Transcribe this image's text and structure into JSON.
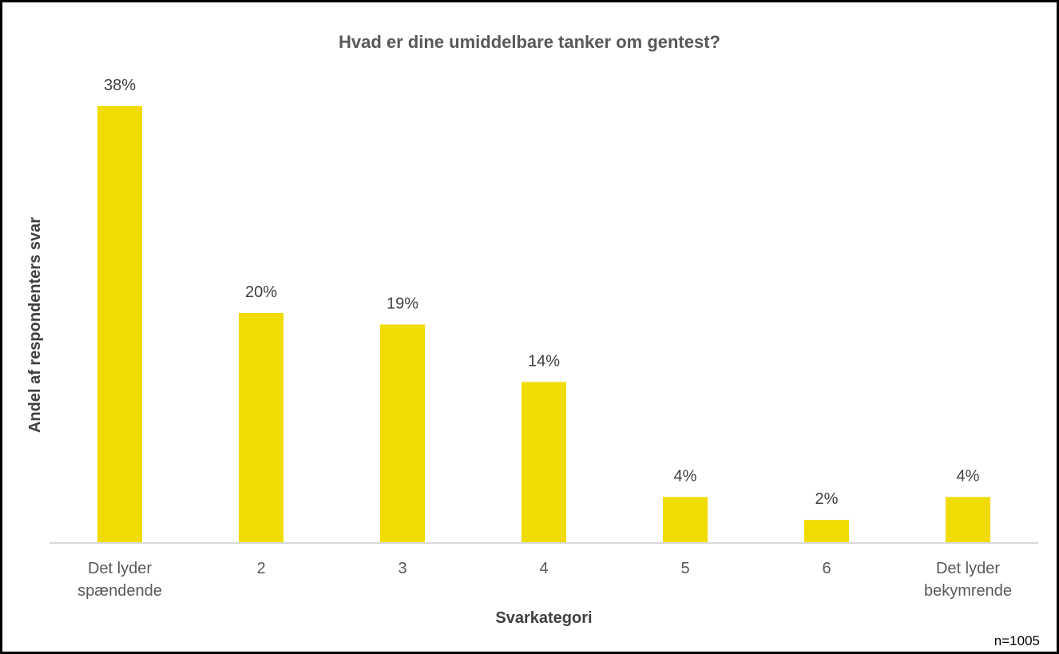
{
  "chart_data": {
    "type": "bar",
    "title": "Hvad er dine umiddelbare tanker om gentest?",
    "xlabel": "Svarkategori",
    "ylabel": "Andel af respondenters svar",
    "categories": [
      [
        "Det lyder",
        "spændende"
      ],
      [
        "2"
      ],
      [
        "3"
      ],
      [
        "4"
      ],
      [
        "5"
      ],
      [
        "6"
      ],
      [
        "Det lyder",
        "bekymrende"
      ]
    ],
    "values": [
      38,
      20,
      19,
      14,
      4,
      2,
      4
    ],
    "data_labels": [
      "38%",
      "20%",
      "19%",
      "14%",
      "4%",
      "2%",
      "4%"
    ],
    "ylim": [
      0,
      40
    ],
    "grid": false,
    "legend": "none",
    "bar_color": "#f0dc00",
    "axis_color": "#d9d9d9"
  },
  "note": "n=1005"
}
